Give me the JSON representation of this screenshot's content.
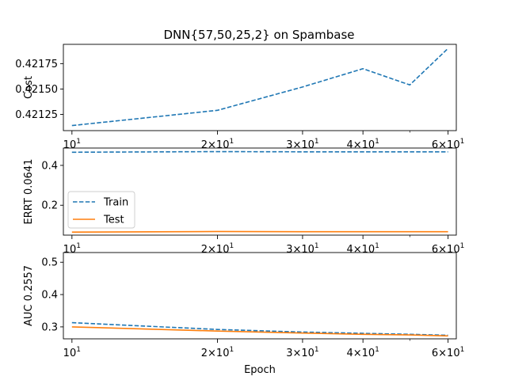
{
  "title": "DNN{57,50,25,2} on Spambase",
  "chart_data": [
    {
      "type": "line",
      "ylabel": "Cost",
      "xscale": "log",
      "x": [
        10,
        20,
        30,
        40,
        50,
        60
      ],
      "xlim": [
        9.6,
        62.4
      ],
      "ylim": [
        0.42109,
        0.42194
      ],
      "yticks": [
        {
          "value": 0.42125,
          "label": "0.42125"
        },
        {
          "value": 0.4215,
          "label": "0.42150"
        },
        {
          "value": 0.42175,
          "label": "0.42175"
        }
      ],
      "series": [
        {
          "key": "train",
          "values": [
            0.42114,
            0.42129,
            0.42152,
            0.4217,
            0.42154,
            0.4219
          ],
          "color": "#1f77b4",
          "dash": true
        }
      ]
    },
    {
      "type": "line",
      "ylabel": "ERRT 0.0641",
      "xscale": "log",
      "x": [
        10,
        20,
        30,
        40,
        50,
        60
      ],
      "xlim": [
        9.6,
        62.4
      ],
      "ylim": [
        0.05,
        0.487
      ],
      "yticks": [
        {
          "value": 0.2,
          "label": "0.2"
        },
        {
          "value": 0.4,
          "label": "0.4"
        }
      ],
      "legend": {
        "placement": "center-left",
        "entries": [
          {
            "name": "Train",
            "color": "#1f77b4",
            "dash": true
          },
          {
            "name": "Test",
            "color": "#ff7f0e",
            "dash": false
          }
        ]
      },
      "series": [
        {
          "name": "Train",
          "values": [
            0.466,
            0.469,
            0.468,
            0.468,
            0.468,
            0.468
          ],
          "color": "#1f77b4",
          "dash": true
        },
        {
          "name": "Test",
          "values": [
            0.065,
            0.068,
            0.067,
            0.067,
            0.067,
            0.067
          ],
          "color": "#ff7f0e",
          "dash": false
        }
      ]
    },
    {
      "type": "line",
      "ylabel": "AUC 0.2557",
      "xlabel": "Epoch",
      "xscale": "log",
      "x": [
        10,
        20,
        30,
        40,
        50,
        60
      ],
      "xlim": [
        9.6,
        62.4
      ],
      "ylim": [
        0.263,
        0.53
      ],
      "yticks": [
        {
          "value": 0.3,
          "label": "0.3"
        },
        {
          "value": 0.4,
          "label": "0.4"
        },
        {
          "value": 0.5,
          "label": "0.5"
        }
      ],
      "series": [
        {
          "name": "Train",
          "values": [
            0.313,
            0.292,
            0.284,
            0.28,
            0.277,
            0.274
          ],
          "color": "#1f77b4",
          "dash": true
        },
        {
          "name": "Test",
          "values": [
            0.3,
            0.287,
            0.281,
            0.277,
            0.275,
            0.272
          ],
          "color": "#ff7f0e",
          "dash": false
        }
      ]
    }
  ],
  "xticks": [
    {
      "value": 10,
      "base": "10",
      "exp": "1",
      "prefix": ""
    },
    {
      "value": 20,
      "base": "10",
      "exp": "1",
      "prefix": "2×"
    },
    {
      "value": 30,
      "base": "10",
      "exp": "1",
      "prefix": "3×"
    },
    {
      "value": 40,
      "base": "10",
      "exp": "1",
      "prefix": "4×"
    },
    {
      "value": 60,
      "base": "10",
      "exp": "1",
      "prefix": "6×"
    }
  ],
  "minor_xticks": [
    50
  ]
}
